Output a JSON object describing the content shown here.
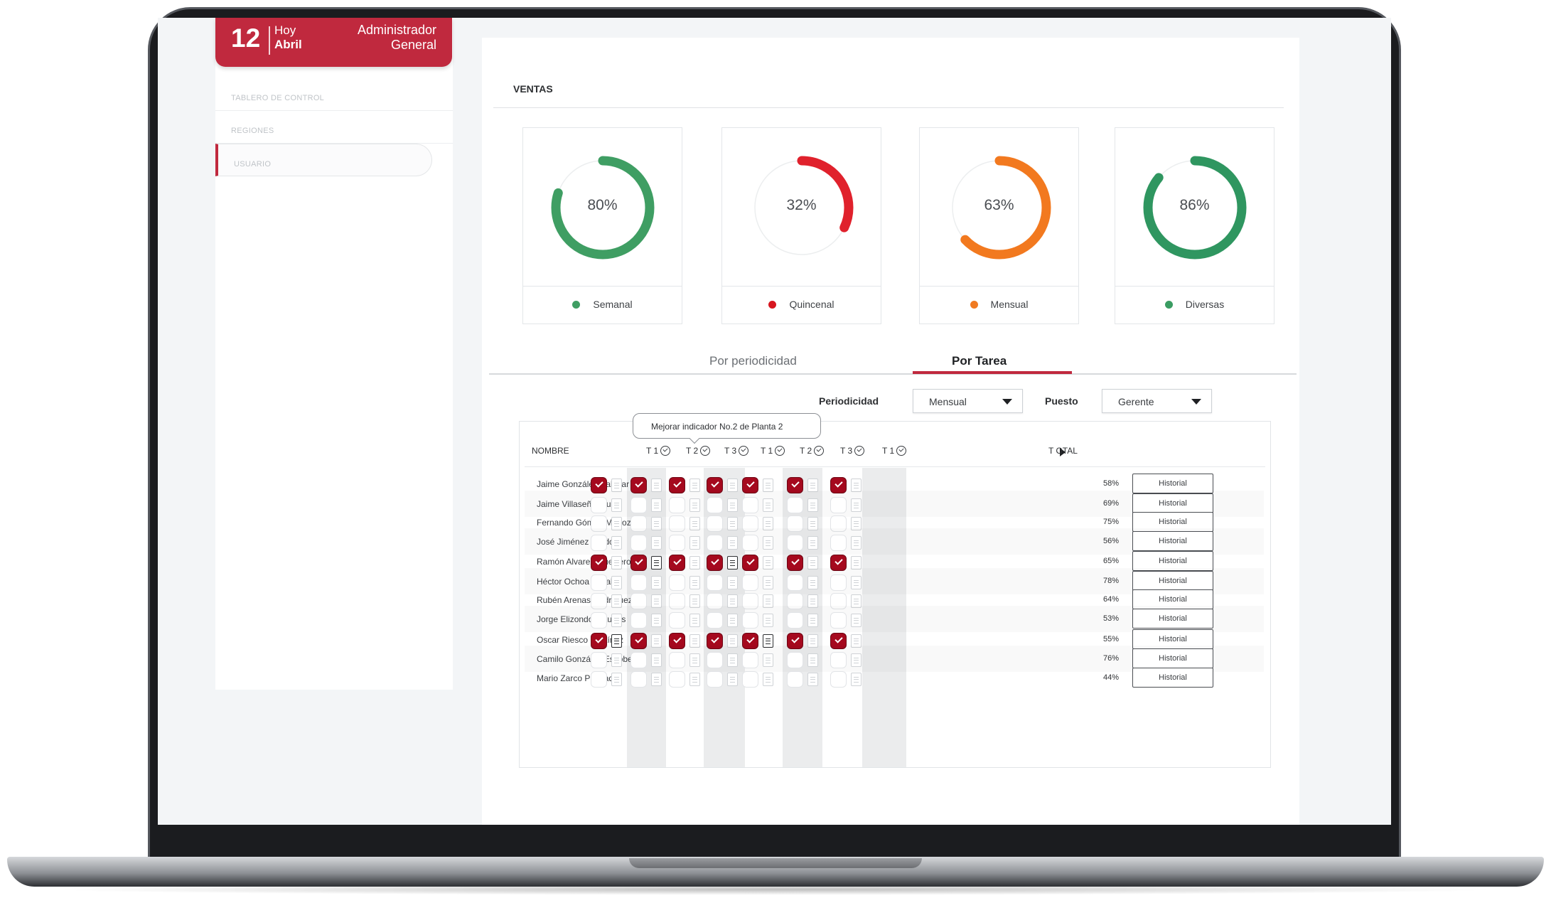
{
  "header": {
    "day": "12",
    "today_label": "Hoy",
    "month": "Abril",
    "user_line1": "Administrador",
    "user_line2": "General"
  },
  "sidebar": {
    "items": [
      {
        "label": "TABLERO DE CONTROL"
      },
      {
        "label": "REGIONES"
      },
      {
        "label": "USUARIO"
      }
    ]
  },
  "main": {
    "section_title": "VENTAS",
    "gauges": [
      {
        "value": "80%",
        "percent": 80,
        "label": "Semanal",
        "color": "#3f9e63",
        "dot": "#3f9e63"
      },
      {
        "value": "32%",
        "percent": 32,
        "label": "Quincenal",
        "color": "#e0212c",
        "dot": "#d7161f"
      },
      {
        "value": "63%",
        "percent": 63,
        "label": "Mensual",
        "color": "#f2791f",
        "dot": "#f07a21"
      },
      {
        "value": "86%",
        "percent": 86,
        "label": "Diversas",
        "color": "#2f9660",
        "dot": "#3a9c62"
      }
    ],
    "tabs": [
      {
        "label": "Por periodicidad"
      },
      {
        "label": "Por Tarea"
      }
    ],
    "filters": {
      "periodicidad_label": "Periodicidad",
      "periodicidad_value": "Mensual",
      "puesto_label": "Puesto",
      "puesto_value": "Gerente"
    },
    "tooltip": "Mejorar indicador No.2 de Planta 2",
    "table": {
      "name_header": "NOMBRE",
      "total_header": "T OTAL",
      "task_headers": [
        "T 1",
        "T 2",
        "T 3",
        "T 1",
        "T 2",
        "T 3",
        "T 1"
      ],
      "history_label": "Historial",
      "rows": [
        {
          "name": "Jaime González Salazar",
          "total": "58%",
          "checked": true,
          "docs": [
            0,
            0,
            0,
            0,
            0,
            0,
            0
          ]
        },
        {
          "name": "Jaime Villaseñor Lugo",
          "total": "69%",
          "checked": false,
          "docs": [
            0,
            0,
            0,
            0,
            0,
            0,
            0
          ]
        },
        {
          "name": "Fernando Gómez Muñoz",
          "total": "75%",
          "checked": false,
          "docs": [
            0,
            0,
            0,
            0,
            0,
            0,
            0
          ]
        },
        {
          "name": "José Jiménez Pardo",
          "total": "56%",
          "checked": false,
          "docs": [
            0,
            0,
            0,
            0,
            0,
            0,
            0
          ]
        },
        {
          "name": "Ramón Alvarez Guerrero",
          "total": "65%",
          "checked": true,
          "docs": [
            0,
            1,
            0,
            1,
            0,
            0,
            0
          ]
        },
        {
          "name": "Héctor Ochoa Zavala",
          "total": "78%",
          "checked": false,
          "docs": [
            0,
            0,
            0,
            0,
            0,
            0,
            0
          ]
        },
        {
          "name": "Rubén Arenas Rodríguez",
          "total": "64%",
          "checked": false,
          "docs": [
            0,
            0,
            0,
            0,
            0,
            0,
            0
          ]
        },
        {
          "name": "Jorge Elizondo Asturias",
          "total": "53%",
          "checked": false,
          "docs": [
            0,
            0,
            0,
            0,
            0,
            0,
            0
          ]
        },
        {
          "name": "Oscar Riesco Martínez",
          "total": "55%",
          "checked": true,
          "docs": [
            1,
            0,
            0,
            0,
            1,
            0,
            0
          ]
        },
        {
          "name": "Camilo González Escobedo",
          "total": "76%",
          "checked": false,
          "docs": [
            0,
            0,
            0,
            0,
            0,
            0,
            0
          ]
        },
        {
          "name": "Mario Zarco Preciado",
          "total": "44%",
          "checked": false,
          "docs": [
            0,
            0,
            0,
            0,
            0,
            0,
            0
          ]
        }
      ]
    }
  }
}
